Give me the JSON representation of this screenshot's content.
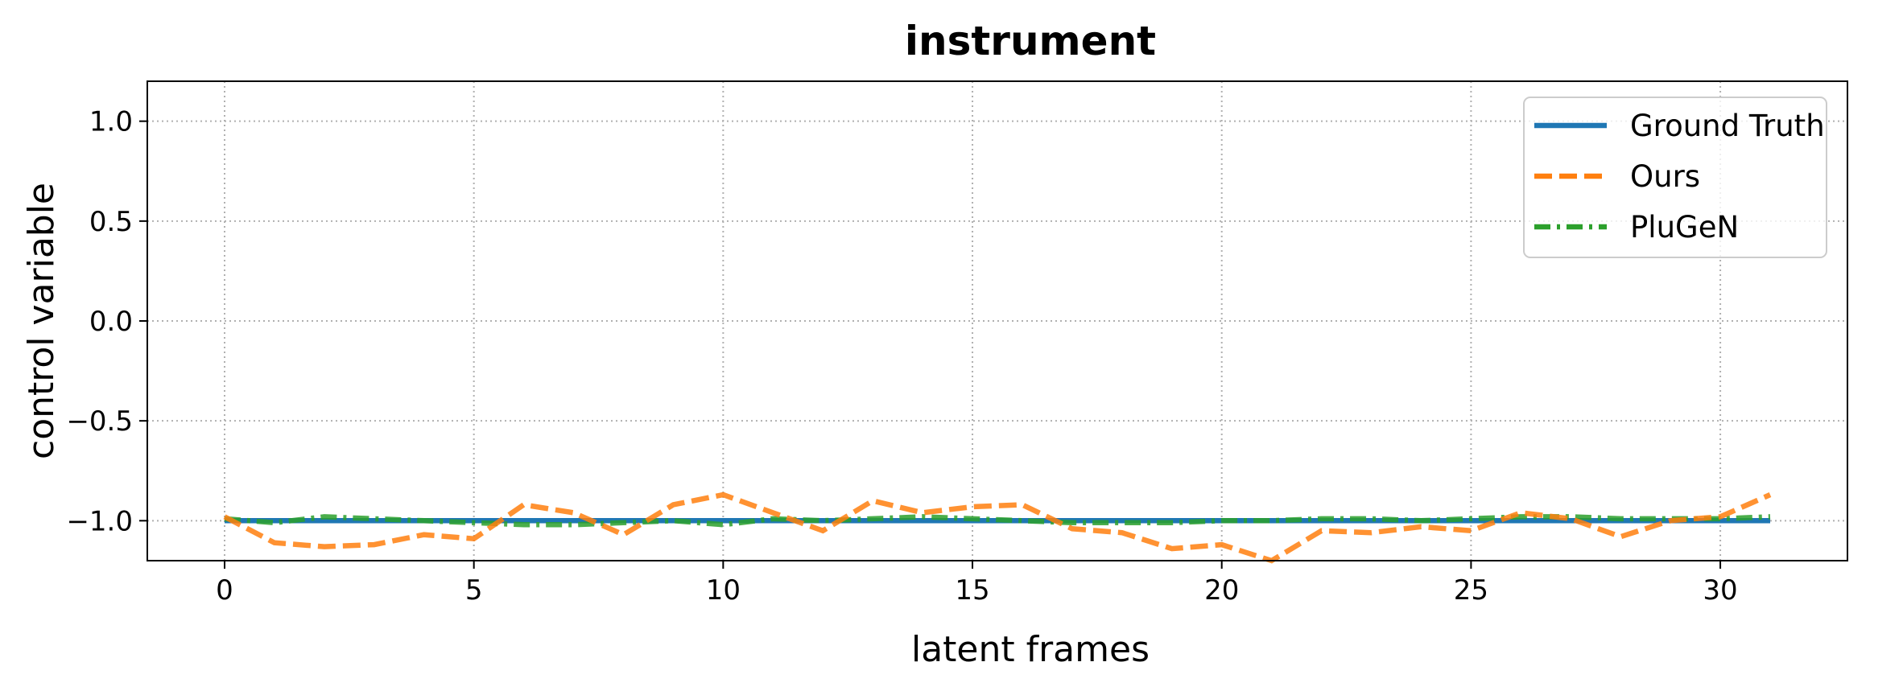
{
  "chart_data": {
    "type": "line",
    "title": "instrument",
    "xlabel": "latent frames",
    "ylabel": "control variable",
    "xlim": [
      -1.55,
      32.55
    ],
    "ylim": [
      -1.2,
      1.2
    ],
    "xticks": [
      0,
      5,
      10,
      15,
      20,
      25,
      30
    ],
    "yticks": [
      1.0,
      0.5,
      0.0,
      -0.5,
      -1.0
    ],
    "ytick_labels": [
      "1.0",
      "0.5",
      "0.0",
      "−0.5",
      "−1.0"
    ],
    "grid": true,
    "legend_position": "upper right",
    "x": [
      0,
      1,
      2,
      3,
      4,
      5,
      6,
      7,
      8,
      9,
      10,
      11,
      12,
      13,
      14,
      15,
      16,
      17,
      18,
      19,
      20,
      21,
      22,
      23,
      24,
      25,
      26,
      27,
      28,
      29,
      30,
      31
    ],
    "series": [
      {
        "name": "Ground Truth",
        "color": "#1f77b4",
        "style": "solid",
        "values": [
          -1,
          -1,
          -1,
          -1,
          -1,
          -1,
          -1,
          -1,
          -1,
          -1,
          -1,
          -1,
          -1,
          -1,
          -1,
          -1,
          -1,
          -1,
          -1,
          -1,
          -1,
          -1,
          -1,
          -1,
          -1,
          -1,
          -1,
          -1,
          -1,
          -1,
          -1,
          -1
        ]
      },
      {
        "name": "Ours",
        "color": "#ff7f0e",
        "style": "dashed",
        "values": [
          -0.98,
          -1.11,
          -1.13,
          -1.12,
          -1.07,
          -1.09,
          -0.92,
          -0.96,
          -1.07,
          -0.92,
          -0.87,
          -0.96,
          -1.05,
          -0.9,
          -0.96,
          -0.93,
          -0.92,
          -1.04,
          -1.06,
          -1.14,
          -1.12,
          -1.2,
          -1.05,
          -1.06,
          -1.03,
          -1.05,
          -0.96,
          -0.99,
          -1.08,
          -1.0,
          -0.98,
          -0.87
        ]
      },
      {
        "name": "PluGeN",
        "color": "#2ca02c",
        "style": "dashdot",
        "values": [
          -0.99,
          -1.01,
          -0.98,
          -0.99,
          -1.0,
          -1.01,
          -1.02,
          -1.02,
          -1.01,
          -1.0,
          -1.02,
          -0.99,
          -1.0,
          -0.99,
          -0.98,
          -0.99,
          -1.0,
          -1.01,
          -1.01,
          -1.01,
          -1.0,
          -1.0,
          -0.99,
          -0.99,
          -1.0,
          -0.99,
          -0.98,
          -0.98,
          -0.99,
          -0.99,
          -0.99,
          -0.98
        ]
      }
    ]
  }
}
